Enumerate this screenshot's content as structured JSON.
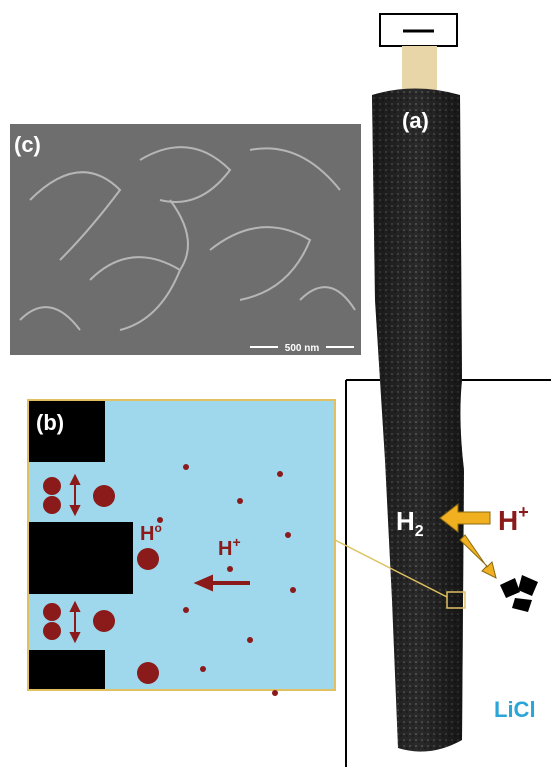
{
  "labels": {
    "a": "(a)",
    "b": "(b)",
    "c": "(c)"
  },
  "scale_bar": "500 nm",
  "electrode_species": {
    "h2": {
      "base": "H",
      "sub": "2"
    },
    "h_plus": {
      "base": "H",
      "sup": "+"
    },
    "electrolyte": "LiCl"
  },
  "inset": {
    "h_adsorbed": {
      "base": "H",
      "sup": "o"
    },
    "h_plus": {
      "base": "H",
      "sup": "+"
    }
  }
}
